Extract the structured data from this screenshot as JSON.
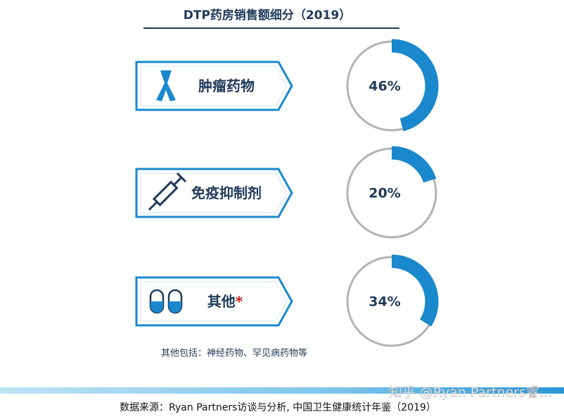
{
  "chart_data": {
    "type": "gauge",
    "title": "DTP药房销售额细分（2019）",
    "categories": [
      "肿瘤药物",
      "免疫抑制剂",
      "其他"
    ],
    "asterisk": "*",
    "values": [
      46,
      20,
      34
    ],
    "value_labels": [
      "46%",
      "20%",
      "34%"
    ],
    "ylim": [
      0,
      100
    ],
    "color": "#1a88cc",
    "track_color": "#b3b3b3",
    "footnote": "其他包括：神经药物、罕见病药物等",
    "source": "数据来源：Ryan Partners访谈与分析, 中国卫生健康统计年鉴（2019）",
    "watermark": "知乎 @Ryan Partners睿..."
  }
}
